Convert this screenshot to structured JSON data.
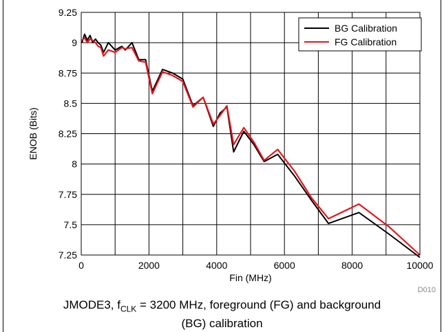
{
  "chart_data": {
    "type": "line",
    "xlabel": "Fin (MHz)",
    "ylabel": "ENOB (Bits)",
    "xlim": [
      0,
      10000
    ],
    "ylim": [
      7.25,
      9.25
    ],
    "x_ticks": [
      "0",
      "2000",
      "4000",
      "6000",
      "8000",
      "10000"
    ],
    "y_ticks": [
      "7.25",
      "7.5",
      "7.75",
      "8",
      "8.25",
      "8.5",
      "8.75",
      "9",
      "9.25"
    ],
    "grid": true,
    "legend_position": "top-right",
    "series": [
      {
        "name": "BG Calibration",
        "color": "#000000",
        "x": [
          20,
          100,
          180,
          260,
          340,
          420,
          500,
          580,
          660,
          800,
          1000,
          1200,
          1300,
          1500,
          1700,
          1900,
          2100,
          2400,
          2700,
          3000,
          3300,
          3600,
          3900,
          4100,
          4300,
          4500,
          4800,
          5100,
          5400,
          5800,
          6300,
          6800,
          7300,
          8200,
          9100,
          10000
        ],
        "values": [
          9.0,
          9.07,
          9.02,
          9.06,
          9.0,
          9.03,
          9.0,
          8.98,
          8.92,
          9.0,
          8.94,
          8.97,
          8.94,
          9.0,
          8.86,
          8.86,
          8.6,
          8.78,
          8.75,
          8.7,
          8.48,
          8.55,
          8.31,
          8.42,
          8.47,
          8.1,
          8.27,
          8.16,
          8.02,
          8.08,
          7.9,
          7.7,
          7.51,
          7.6,
          7.42,
          7.23
        ]
      },
      {
        "name": "FG Calibration",
        "color": "#e8141c",
        "x": [
          20,
          100,
          180,
          260,
          340,
          420,
          500,
          580,
          660,
          800,
          1000,
          1200,
          1300,
          1500,
          1700,
          1900,
          2100,
          2400,
          2700,
          3000,
          3300,
          3600,
          3900,
          4100,
          4300,
          4500,
          4800,
          5100,
          5400,
          5800,
          6300,
          6800,
          7300,
          8200,
          9100,
          10000
        ],
        "values": [
          9.02,
          9.04,
          9.0,
          9.03,
          9.02,
          9.0,
          8.97,
          8.96,
          8.89,
          8.94,
          8.92,
          8.96,
          8.95,
          8.96,
          8.85,
          8.84,
          8.58,
          8.76,
          8.73,
          8.68,
          8.47,
          8.55,
          8.33,
          8.4,
          8.48,
          8.16,
          8.3,
          8.18,
          8.03,
          8.12,
          7.94,
          7.72,
          7.55,
          7.67,
          7.48,
          7.25
        ]
      }
    ]
  },
  "figure": {
    "code": "D010",
    "caption_main": "JMODE3, f",
    "caption_sub": "CLK",
    "caption_rest": " = 3200 MHz, foreground (FG) and background",
    "caption_line2": "(BG) calibration"
  }
}
